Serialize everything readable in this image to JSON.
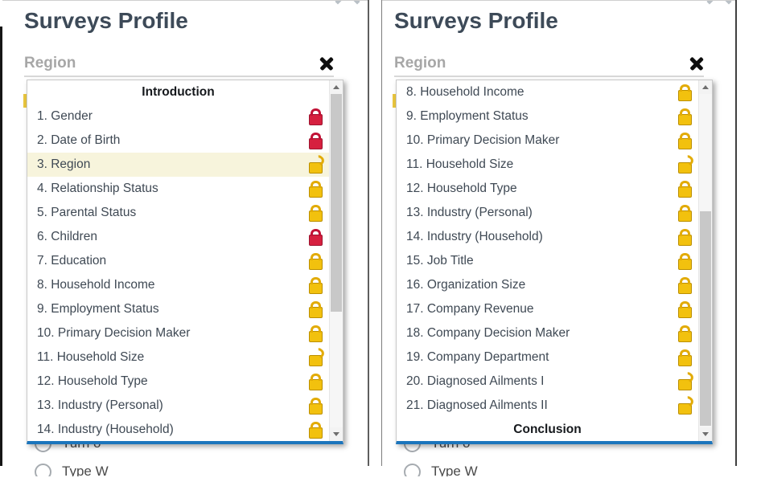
{
  "colors": {
    "accent_blue_bar": "#1b75bc",
    "highlight_row": "#f7f4dc",
    "lock_red": "#d6203f",
    "lock_yellow": "#f2c10e",
    "title_text": "#3d4a58",
    "region_label_text": "#a7a7a7"
  },
  "panels": [
    {
      "title": "Surveys Profile",
      "question_label": "Region",
      "close_icon": "✖",
      "scroll_chevron": "︿",
      "list_items": [
        {
          "type": "header",
          "label": "Introduction"
        },
        {
          "type": "question",
          "label": "1. Gender",
          "lock": "locked-red"
        },
        {
          "type": "question",
          "label": "2. Date of Birth",
          "lock": "locked-red"
        },
        {
          "type": "question",
          "label": "3. Region",
          "lock": "unlocked-yellow",
          "highlighted": true
        },
        {
          "type": "question",
          "label": "4. Relationship Status",
          "lock": "locked-yellow"
        },
        {
          "type": "question",
          "label": "5. Parental Status",
          "lock": "locked-yellow"
        },
        {
          "type": "question",
          "label": "6. Children",
          "lock": "locked-red"
        },
        {
          "type": "question",
          "label": "7. Education",
          "lock": "locked-yellow"
        },
        {
          "type": "question",
          "label": "8. Household Income",
          "lock": "locked-yellow"
        },
        {
          "type": "question",
          "label": "9. Employment Status",
          "lock": "locked-yellow"
        },
        {
          "type": "question",
          "label": "10. Primary Decision Maker",
          "lock": "locked-yellow"
        },
        {
          "type": "question",
          "label": "11. Household Size",
          "lock": "unlocked-yellow"
        },
        {
          "type": "question",
          "label": "12. Household Type",
          "lock": "locked-yellow"
        },
        {
          "type": "question",
          "label": "13. Industry (Personal)",
          "lock": "locked-yellow"
        },
        {
          "type": "question",
          "label": "14. Industry (Household)",
          "lock": "locked-yellow"
        }
      ],
      "background_options": [
        "Turn o",
        "Type W"
      ]
    },
    {
      "title": "Surveys Profile",
      "question_label": "Region",
      "close_icon": "✖",
      "scroll_chevron": "︿",
      "list_items": [
        {
          "type": "question",
          "label": "8. Household Income",
          "lock": "locked-yellow"
        },
        {
          "type": "question",
          "label": "9. Employment Status",
          "lock": "locked-yellow"
        },
        {
          "type": "question",
          "label": "10. Primary Decision Maker",
          "lock": "locked-yellow"
        },
        {
          "type": "question",
          "label": "11. Household Size",
          "lock": "unlocked-yellow"
        },
        {
          "type": "question",
          "label": "12. Household Type",
          "lock": "locked-yellow"
        },
        {
          "type": "question",
          "label": "13. Industry (Personal)",
          "lock": "locked-yellow"
        },
        {
          "type": "question",
          "label": "14. Industry (Household)",
          "lock": "locked-yellow"
        },
        {
          "type": "question",
          "label": "15. Job Title",
          "lock": "locked-yellow"
        },
        {
          "type": "question",
          "label": "16. Organization Size",
          "lock": "locked-yellow"
        },
        {
          "type": "question",
          "label": "17. Company Revenue",
          "lock": "locked-yellow"
        },
        {
          "type": "question",
          "label": "18. Company Decision Maker",
          "lock": "locked-yellow"
        },
        {
          "type": "question",
          "label": "19. Company Department",
          "lock": "locked-yellow"
        },
        {
          "type": "question",
          "label": "20. Diagnosed Ailments I",
          "lock": "unlocked-yellow"
        },
        {
          "type": "question",
          "label": "21. Diagnosed Ailments II",
          "lock": "unlocked-yellow"
        },
        {
          "type": "header",
          "label": "Conclusion"
        }
      ],
      "background_options": [
        "Turn o",
        "Type W"
      ]
    }
  ]
}
